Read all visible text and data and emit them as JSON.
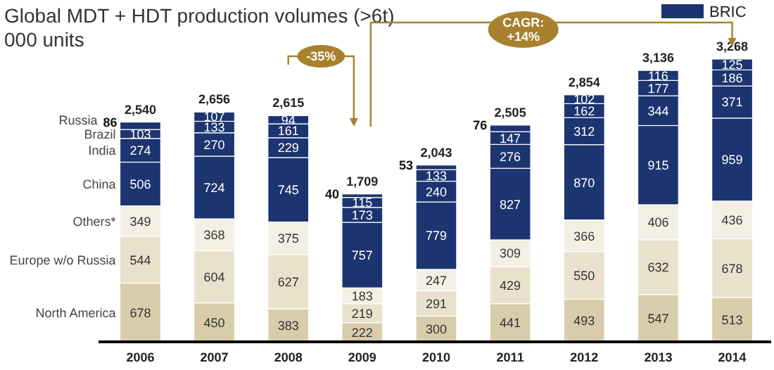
{
  "chart_data": {
    "type": "bar",
    "title": "Global MDT + HDT production volumes (>6t)",
    "subtitle": "000 units",
    "categories": [
      "2006",
      "2007",
      "2008",
      "2009",
      "2010",
      "2011",
      "2012",
      "2013",
      "2014"
    ],
    "stacked": true,
    "data_labels": true,
    "legend": "left",
    "legend_title": "BRIC",
    "series": [
      {
        "name": "North America",
        "color": "#d9ccaa",
        "values": [
          678,
          450,
          383,
          222,
          300,
          441,
          493,
          547,
          513
        ]
      },
      {
        "name": "Europe w/o Russia",
        "color": "#e9e1cc",
        "values": [
          544,
          604,
          627,
          219,
          291,
          429,
          550,
          632,
          678
        ]
      },
      {
        "name": "Others*",
        "color": "#f4efe3",
        "values": [
          349,
          368,
          375,
          183,
          247,
          309,
          366,
          406,
          436
        ]
      },
      {
        "name": "China",
        "color": "#1c3570",
        "values": [
          506,
          724,
          745,
          757,
          779,
          827,
          870,
          915,
          959
        ]
      },
      {
        "name": "India",
        "color": "#1c3570",
        "values": [
          274,
          270,
          229,
          173,
          240,
          276,
          312,
          344,
          371
        ]
      },
      {
        "name": "Brazil",
        "color": "#1c3570",
        "values": [
          103,
          133,
          161,
          115,
          133,
          147,
          162,
          177,
          186
        ]
      },
      {
        "name": "Russia",
        "color": "#1c3570",
        "values": [
          86,
          107,
          94,
          40,
          53,
          76,
          102,
          116,
          125
        ]
      }
    ],
    "totals": [
      "2,540",
      "2,656",
      "2,615",
      "1,709",
      "2,043",
      "2,505",
      "2,854",
      "3,136",
      "3,268"
    ],
    "annotations": [
      "-35%",
      "CAGR: +14%"
    ]
  }
}
